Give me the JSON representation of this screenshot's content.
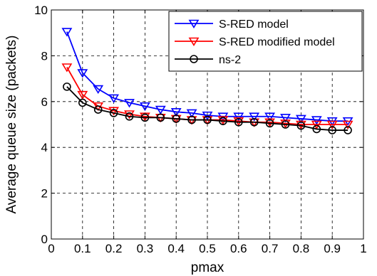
{
  "chart_data": {
    "type": "line",
    "title": "",
    "xlabel": "pmax",
    "ylabel": "Average queue size (packets)",
    "xlim": [
      0,
      1
    ],
    "ylim": [
      0,
      10
    ],
    "xticks": [
      0,
      0.1,
      0.2,
      0.3,
      0.4,
      0.5,
      0.6,
      0.7,
      0.8,
      0.9,
      1
    ],
    "yticks": [
      0,
      2,
      4,
      6,
      8,
      10
    ],
    "xtick_labels": [
      "0",
      "0.1",
      "0.2",
      "0.3",
      "0.4",
      "0.5",
      "0.6",
      "0.7",
      "0.8",
      "0.9",
      "1"
    ],
    "ytick_labels": [
      "0",
      "2",
      "4",
      "6",
      "8",
      "10"
    ],
    "grid": true,
    "legend_position": "top-right",
    "x": [
      0.05,
      0.1,
      0.15,
      0.2,
      0.25,
      0.3,
      0.35,
      0.4,
      0.45,
      0.5,
      0.55,
      0.6,
      0.65,
      0.7,
      0.75,
      0.8,
      0.85,
      0.9,
      0.95
    ],
    "series": [
      {
        "name": "S-RED model",
        "color": "#0000ff",
        "marker": "triangle-down",
        "values": [
          9.05,
          7.25,
          6.55,
          6.15,
          5.95,
          5.8,
          5.65,
          5.55,
          5.5,
          5.4,
          5.35,
          5.35,
          5.35,
          5.35,
          5.3,
          5.25,
          5.2,
          5.15,
          5.15
        ]
      },
      {
        "name": "S-RED modified model",
        "color": "#ff0000",
        "marker": "triangle-down",
        "values": [
          7.5,
          6.3,
          5.8,
          5.6,
          5.45,
          5.35,
          5.3,
          5.25,
          5.2,
          5.2,
          5.2,
          5.15,
          5.1,
          5.1,
          5.05,
          5.0,
          5.0,
          5.0,
          5.0
        ]
      },
      {
        "name": "ns-2",
        "color": "#000000",
        "marker": "circle",
        "values": [
          6.65,
          5.95,
          5.65,
          5.5,
          5.35,
          5.3,
          5.3,
          5.25,
          5.2,
          5.2,
          5.15,
          5.1,
          5.1,
          5.05,
          5.0,
          4.95,
          4.8,
          4.75,
          4.75
        ]
      }
    ]
  }
}
